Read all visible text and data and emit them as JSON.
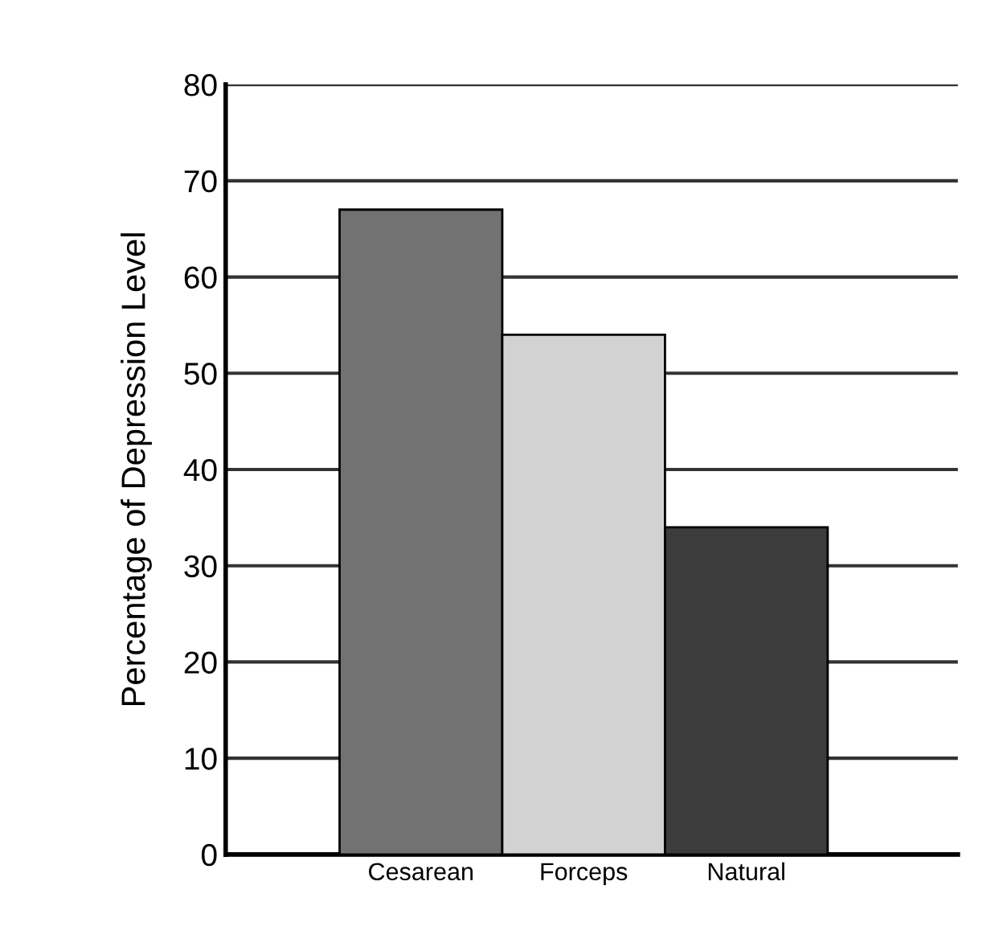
{
  "chart_data": {
    "type": "bar",
    "ylabel": "Percentage of Depression Level",
    "categories": [
      "Cesarean",
      "Forceps",
      "Natural"
    ],
    "values": [
      67,
      54,
      34
    ],
    "colors": [
      "#727272",
      "#d2d2d2",
      "#3c3c3c"
    ],
    "ylim": [
      0,
      80
    ],
    "yticks": [
      0,
      10,
      20,
      30,
      40,
      50,
      60,
      70,
      80
    ],
    "grid": "y"
  }
}
